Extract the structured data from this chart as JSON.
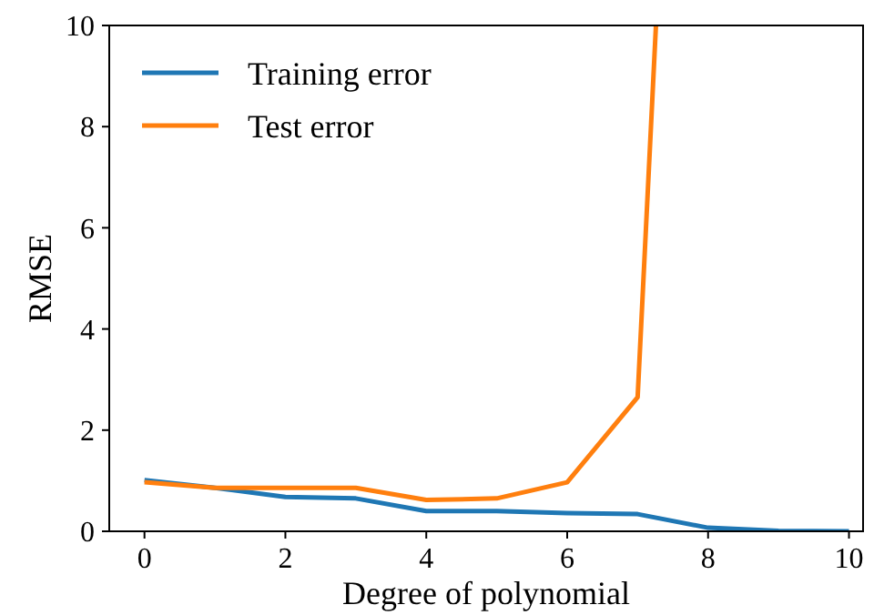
{
  "chart_data": {
    "type": "line",
    "xlabel": "Degree of polynomial",
    "ylabel": "RMSE",
    "x": [
      0,
      1,
      2,
      3,
      4,
      5,
      6,
      7,
      8,
      9,
      10
    ],
    "series": [
      {
        "name": "Training error",
        "color": "#1f77b4",
        "values": [
          1.01,
          0.86,
          0.68,
          0.65,
          0.4,
          0.4,
          0.36,
          0.34,
          0.07,
          0.01,
          0
        ]
      },
      {
        "name": "Test error",
        "color": "#ff7f0e",
        "x": [
          0,
          1,
          2,
          3,
          4,
          5,
          6,
          7,
          7.26
        ],
        "values": [
          0.97,
          0.86,
          0.86,
          0.86,
          0.62,
          0.65,
          0.97,
          2.65,
          10
        ]
      }
    ],
    "xlim": [
      -0.5,
      10.2
    ],
    "ylim": [
      0,
      10
    ],
    "xticks": [
      0,
      2,
      4,
      6,
      8,
      10
    ],
    "yticks": [
      0,
      2,
      4,
      6,
      8,
      10
    ],
    "grid": false,
    "legend": "top left",
    "marker": "none",
    "line_style": "solid"
  }
}
